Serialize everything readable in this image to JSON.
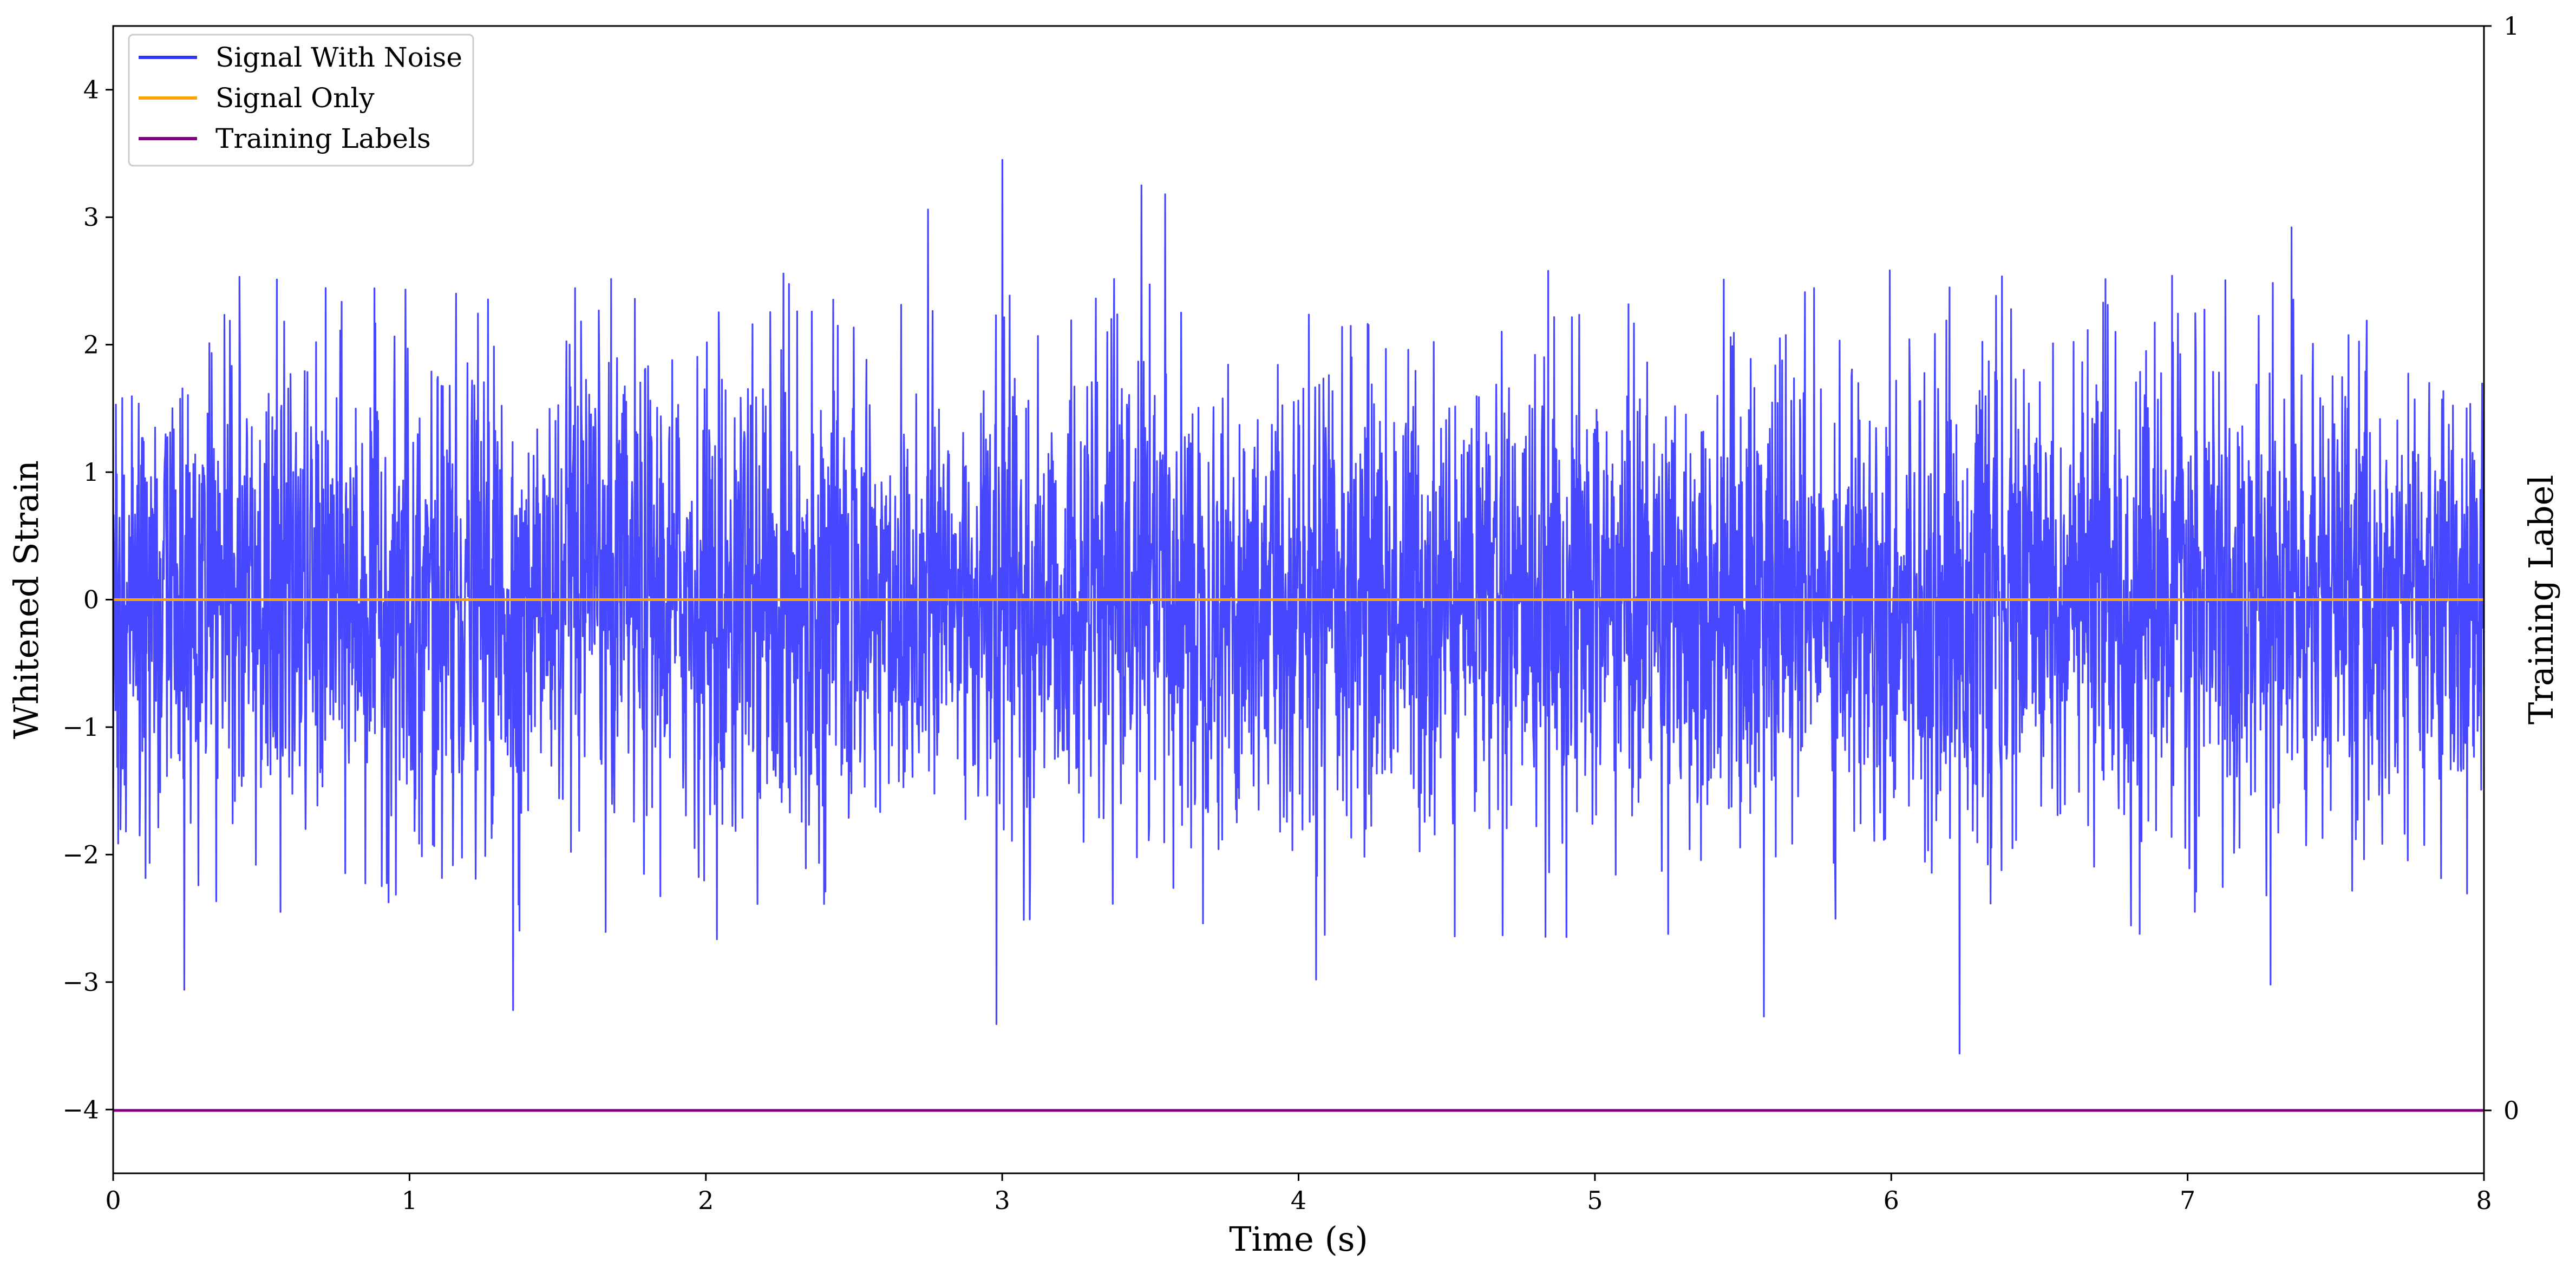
{
  "chart_data": {
    "type": "line",
    "xlabel": "Time (s)",
    "ylabel": "Whitened Strain",
    "ylabel_right": "Training Label",
    "xlim": [
      0,
      8
    ],
    "ylim": [
      -4.5,
      4.5
    ],
    "ylim_right": [
      -0.058,
      1.0
    ],
    "x_ticks": [
      0,
      1,
      2,
      3,
      4,
      5,
      6,
      7,
      8
    ],
    "x_tick_labels": [
      "0",
      "1",
      "2",
      "3",
      "4",
      "5",
      "6",
      "7",
      "8"
    ],
    "y_ticks": [
      4,
      3,
      2,
      1,
      0,
      -1,
      -2,
      -3,
      -4
    ],
    "y_tick_labels": [
      "4",
      "3",
      "2",
      "1",
      "0",
      "−1",
      "−2",
      "−3",
      "−4"
    ],
    "y_right_ticks": [
      1,
      0
    ],
    "y_right_tick_labels": [
      "1",
      "0"
    ],
    "grid": false,
    "legend_position": "top-left",
    "series": [
      {
        "name": "Signal With Noise",
        "color": "#3333ff",
        "axis": "left",
        "description_stats": {
          "mean": 0.0,
          "approx_std": 0.9,
          "min": -3.56,
          "max": 3.45
        },
        "notable_extrema": [
          {
            "x": 0.24,
            "y": -3.06
          },
          {
            "x": 1.35,
            "y": -3.22
          },
          {
            "x": 2.75,
            "y": 3.06
          },
          {
            "x": 2.98,
            "y": -3.33
          },
          {
            "x": 3.0,
            "y": 3.45
          },
          {
            "x": 3.47,
            "y": 3.25
          },
          {
            "x": 3.55,
            "y": 3.18
          },
          {
            "x": 4.06,
            "y": -2.98
          },
          {
            "x": 5.57,
            "y": -3.27
          },
          {
            "x": 6.23,
            "y": -3.56
          },
          {
            "x": 7.28,
            "y": -3.02
          },
          {
            "x": 7.35,
            "y": 2.92
          }
        ]
      },
      {
        "name": "Signal Only",
        "color": "#ffa500",
        "axis": "left",
        "x": [
          0,
          8
        ],
        "y": [
          0,
          0
        ]
      },
      {
        "name": "Training Labels",
        "color": "#800080",
        "axis": "right",
        "x": [
          0,
          8
        ],
        "y": [
          0,
          0
        ]
      }
    ]
  }
}
